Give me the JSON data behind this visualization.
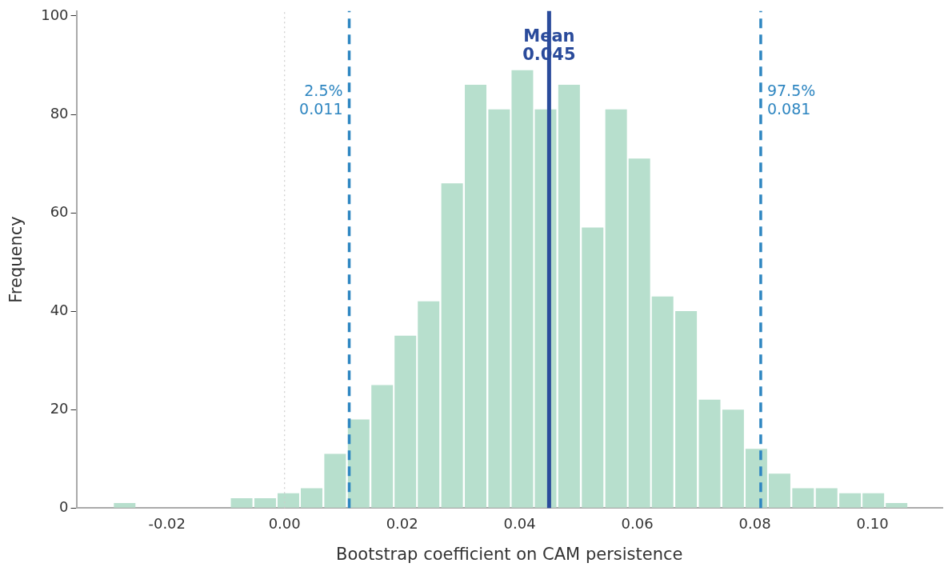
{
  "chart_data": {
    "type": "histogram",
    "xlabel": "Bootstrap coefficient on CAM persistence",
    "ylabel": "Frequency",
    "color": "#b7dfcd",
    "bins": [
      -0.0292,
      -0.0252,
      -0.0093,
      -0.0053,
      -0.0013,
      0.0026,
      0.0066,
      0.0106,
      0.0146,
      0.0186,
      0.0225,
      0.0265,
      0.0305,
      0.0345,
      0.0385,
      0.0424,
      0.0464,
      0.0504,
      0.0544,
      0.0584,
      0.0623,
      0.0663,
      0.0703,
      0.0743,
      0.0783,
      0.0822,
      0.0862,
      0.0902,
      0.0942,
      0.0982,
      0.1021,
      0.1061
    ],
    "values": [
      1,
      0,
      2,
      2,
      3,
      4,
      11,
      18,
      25,
      35,
      42,
      66,
      86,
      81,
      89,
      81,
      86,
      57,
      81,
      71,
      43,
      40,
      22,
      20,
      12,
      7,
      4,
      4,
      3,
      3,
      1
    ],
    "xlim": [
      -0.0354,
      0.1119
    ],
    "ylim": [
      0,
      101
    ],
    "xticks": [
      {
        "value": -0.02,
        "label": "-0.02"
      },
      {
        "value": 0,
        "label": "0.00"
      },
      {
        "value": 0.02,
        "label": "0.02"
      },
      {
        "value": 0.04,
        "label": "0.04"
      },
      {
        "value": 0.06,
        "label": "0.06"
      },
      {
        "value": 0.08,
        "label": "0.08"
      },
      {
        "value": 0.1,
        "label": "0.10"
      }
    ],
    "yticks": [
      0,
      20,
      40,
      60,
      80,
      100
    ],
    "ref_lines": [
      {
        "axis": "x",
        "value": 0,
        "color": "#cccccc",
        "line_style": "dotted"
      },
      {
        "axis": "x",
        "value": 0.011,
        "label": "2.5%\n0.011",
        "color": "#2e86c1",
        "line_style": "dashed"
      },
      {
        "axis": "x",
        "value": 0.045,
        "label": "Mean\n0.045",
        "color": "#2a4b9b",
        "line_style": "solid"
      },
      {
        "axis": "x",
        "value": 0.081,
        "label": "97.5%\n0.081",
        "color": "#2e86c1",
        "line_style": "dashed"
      }
    ],
    "grid": false,
    "legend": false
  }
}
